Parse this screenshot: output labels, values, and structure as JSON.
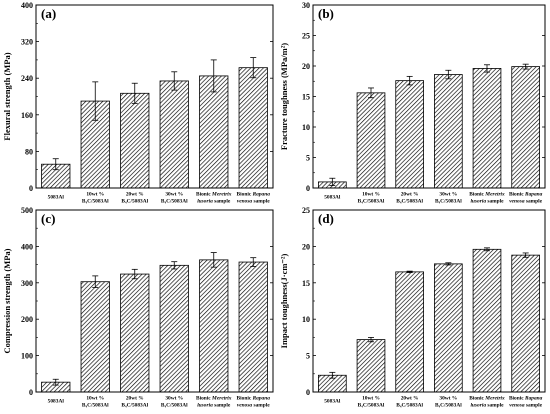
{
  "figure": {
    "background": "#ffffff",
    "bar_fill": "hatched-diagonal",
    "bar_stroke": "#000000"
  },
  "chart_data": [
    {
      "type": "bar",
      "panel_label": "(a)",
      "categories": [
        [
          "5083Al"
        ],
        [
          "10wt %",
          "B₄C/5083Al"
        ],
        [
          "20wt %",
          "B₄C/5083Al"
        ],
        [
          "30wt %",
          "B₄C/5083Al"
        ],
        [
          "Bionic Meretrix",
          "lusoria sample"
        ],
        [
          "Bionic Rapana",
          "venosa sample"
        ]
      ],
      "values": [
        52,
        190,
        207,
        234,
        245,
        263
      ],
      "errors": [
        12,
        42,
        22,
        20,
        35,
        22
      ],
      "ylabel": "Flexural strength (MPa)",
      "ylim": [
        0,
        400
      ],
      "yticks": [
        0,
        80,
        160,
        240,
        320,
        400
      ],
      "grid": false
    },
    {
      "type": "bar",
      "panel_label": "(b)",
      "categories": [
        [
          "5083Al"
        ],
        [
          "10wt %",
          "B₄C/5083Al"
        ],
        [
          "20wt %",
          "B₄C/5083Al"
        ],
        [
          "30wt %",
          "B₄C/5083Al"
        ],
        [
          "Bionic Meretrix",
          "lusoria sample"
        ],
        [
          "Bionic Rapana",
          "venosa sample"
        ]
      ],
      "values": [
        1.0,
        15.6,
        17.6,
        18.6,
        19.6,
        19.9
      ],
      "errors": [
        0.6,
        0.8,
        0.7,
        0.7,
        0.6,
        0.4
      ],
      "ylabel": "Fracture toughness (MPa/m²)",
      "ylim": [
        0,
        30
      ],
      "yticks": [
        0,
        5,
        10,
        15,
        20,
        25,
        30
      ],
      "grid": false
    },
    {
      "type": "bar",
      "panel_label": "(c)",
      "categories": [
        [
          "5083Al"
        ],
        [
          "10wt %",
          "B₄C/5083Al"
        ],
        [
          "20wt %",
          "B₄C/5083Al"
        ],
        [
          "30wt %",
          "B₄C/5083Al"
        ],
        [
          "Bionic Meretrix",
          "lusoria sample"
        ],
        [
          "Bionic Rapana",
          "venosa sample"
        ]
      ],
      "values": [
        27,
        303,
        324,
        348,
        363,
        357
      ],
      "errors": [
        8,
        16,
        13,
        10,
        20,
        12
      ],
      "ylabel": "Compression strength (MPa)",
      "ylim": [
        0,
        500
      ],
      "yticks": [
        0,
        100,
        200,
        300,
        400,
        500
      ],
      "grid": false
    },
    {
      "type": "bar",
      "panel_label": "(d)",
      "categories": [
        [
          "5083Al"
        ],
        [
          "10wt %",
          "B₄C/5083Al"
        ],
        [
          "20wt %",
          "B₄C/5083Al"
        ],
        [
          "30wt %",
          "B₄C/5083Al"
        ],
        [
          "Bionic Meretrix",
          "lusoria sample"
        ],
        [
          "Bionic Rapana",
          "venosa sample"
        ]
      ],
      "values": [
        2.3,
        7.2,
        16.5,
        17.6,
        19.6,
        18.8
      ],
      "errors": [
        0.4,
        0.3,
        0.1,
        0.15,
        0.2,
        0.3
      ],
      "ylabel": "Impact toughness(J·cm⁻²)",
      "ylim": [
        0,
        25
      ],
      "yticks": [
        0,
        5,
        10,
        15,
        20,
        25
      ],
      "grid": false
    }
  ]
}
